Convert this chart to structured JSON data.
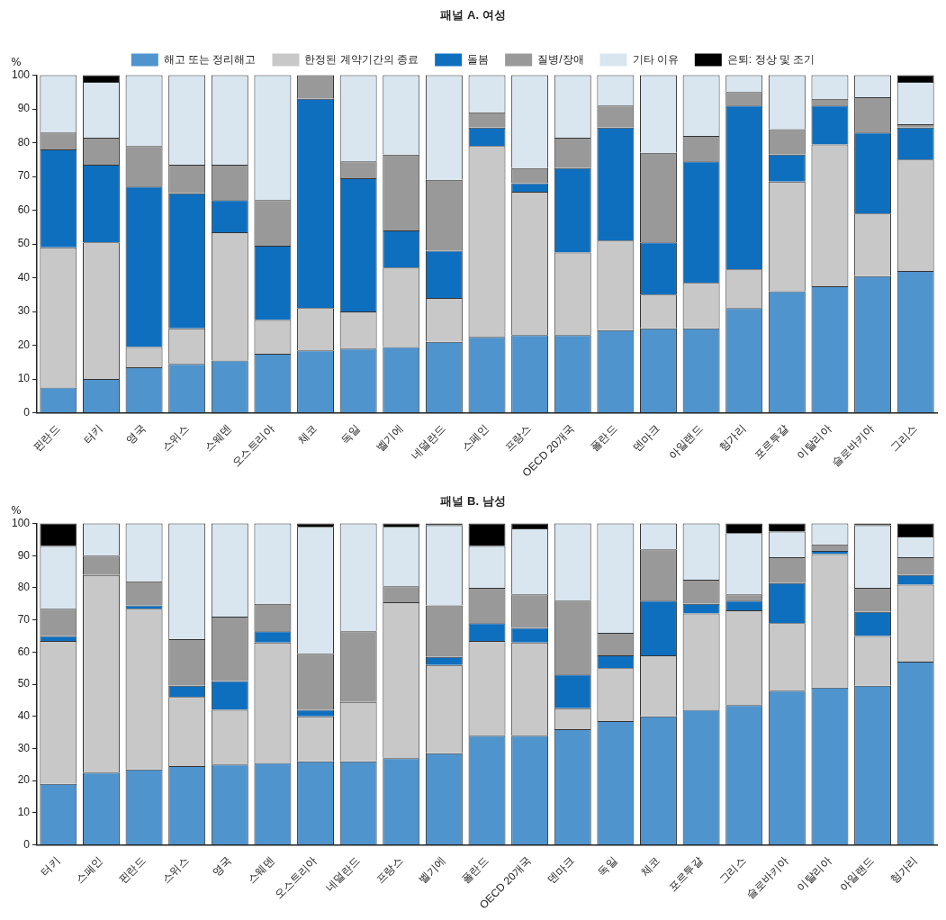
{
  "chart_data": [
    {
      "type": "bar",
      "title": "패널 A. 여성",
      "ylabel": "%",
      "stacked": true,
      "legend": "top",
      "grid": false,
      "ylim": [
        0,
        100
      ],
      "yticks": [
        0,
        10,
        20,
        30,
        40,
        50,
        60,
        70,
        80,
        90,
        100
      ],
      "categories": [
        "핀란드",
        "터키",
        "영국",
        "스위스",
        "스웨덴",
        "오스트리아",
        "체코",
        "독일",
        "벨기에",
        "네덜란드",
        "스페인",
        "프랑스",
        "OECD 20개국",
        "폴란드",
        "덴마크",
        "아일랜드",
        "헝가리",
        "포르투갈",
        "이탈리아",
        "슬로바키아",
        "그리스"
      ],
      "series": [
        {
          "name": "해고 또는 정리해고",
          "color": "#4f94cd",
          "values": [
            7.5,
            10,
            13.5,
            14.5,
            15.5,
            17.5,
            18.5,
            19,
            19.5,
            21,
            22.5,
            23,
            23,
            24.5,
            25,
            25,
            31,
            36,
            37.5,
            40.5,
            42
          ]
        },
        {
          "name": "한정된 계약기간의 종료",
          "color": "#c8c8c8",
          "values": [
            41.5,
            40.5,
            6,
            10.5,
            38,
            10,
            12.5,
            11,
            23.5,
            13,
            56.5,
            42.5,
            24.5,
            26.5,
            10,
            13.5,
            11.5,
            32.5,
            42,
            18.5,
            33
          ]
        },
        {
          "name": "돌봄",
          "color": "#0f6fbf",
          "values": [
            29,
            23,
            47.5,
            40,
            9.5,
            22,
            62,
            39.5,
            11,
            14,
            5.5,
            2.5,
            25,
            33.5,
            15.5,
            36,
            48.5,
            8,
            11.5,
            24,
            9.5
          ]
        },
        {
          "name": "질병/장애",
          "color": "#999999",
          "values": [
            5,
            8,
            12,
            8.5,
            10.5,
            13.5,
            7,
            5,
            22.5,
            21,
            4.5,
            4.5,
            9,
            6.5,
            26.5,
            7.5,
            4,
            7.5,
            2,
            10.5,
            1
          ]
        },
        {
          "name": "기타 이유",
          "color": "#d9e6f0",
          "values": [
            17,
            16.5,
            21,
            26.5,
            26.5,
            37,
            0,
            25.5,
            23.5,
            31,
            11,
            27.5,
            18.5,
            9,
            23,
            18,
            5,
            16,
            7,
            6.5,
            12.5
          ]
        },
        {
          "name": "은퇴: 정상 및 조기",
          "color": "#000000",
          "values": [
            0,
            2,
            0,
            0,
            0,
            0,
            0,
            0,
            0,
            0,
            0,
            0,
            0,
            0,
            0,
            0,
            0,
            0,
            0,
            0,
            2
          ]
        }
      ]
    },
    {
      "type": "bar",
      "title": "패널 B. 남성",
      "ylabel": "%",
      "stacked": true,
      "grid": false,
      "ylim": [
        0,
        100
      ],
      "yticks": [
        0,
        10,
        20,
        30,
        40,
        50,
        60,
        70,
        80,
        90,
        100
      ],
      "categories": [
        "터키",
        "스페인",
        "핀란드",
        "스위스",
        "영국",
        "스웨덴",
        "오스트리아",
        "네덜란드",
        "프랑스",
        "벨기에",
        "폴란드",
        "OECD 20개국",
        "덴마크",
        "독일",
        "체코",
        "포르투갈",
        "그리스",
        "슬로바키아",
        "이탈리아",
        "아일랜드",
        "헝가리"
      ],
      "series": [
        {
          "color": "#4f94cd",
          "values": [
            19,
            22.5,
            23.5,
            24.5,
            25,
            25.5,
            26,
            26,
            27,
            28.5,
            34,
            34,
            36,
            38.5,
            40,
            42,
            43.5,
            48,
            49,
            49.5,
            57
          ]
        },
        {
          "color": "#c8c8c8",
          "values": [
            44.5,
            61.5,
            50,
            21.5,
            17,
            37.5,
            14,
            18.5,
            48.5,
            27.5,
            29.5,
            29,
            6.5,
            16.5,
            19,
            30,
            29.5,
            21,
            41.5,
            15.5,
            24
          ]
        },
        {
          "color": "#0f6fbf",
          "values": [
            1.5,
            null,
            1,
            3.5,
            9,
            3.5,
            2,
            null,
            0,
            2.5,
            5.5,
            4.5,
            10.5,
            4,
            17,
            3,
            3,
            12.5,
            1,
            7.5,
            3
          ]
        },
        {
          "color": "#999999",
          "values": [
            8.5,
            6,
            7.5,
            14.5,
            20,
            8.5,
            17.5,
            22,
            5,
            16,
            11,
            10.5,
            23,
            7,
            16,
            7.5,
            2,
            8,
            2,
            7.5,
            5.5
          ]
        },
        {
          "color": "#d9e6f0",
          "values": [
            19.5,
            10,
            18,
            36,
            29,
            25,
            39.5,
            33.5,
            18.5,
            25,
            13,
            20.5,
            24,
            34,
            8,
            17.5,
            19,
            8,
            6.5,
            19.5,
            6.5
          ]
        },
        {
          "color": "#000000",
          "values": [
            7,
            0,
            0,
            0,
            0,
            0,
            1,
            0,
            1,
            0.5,
            7,
            1.5,
            0,
            0,
            0,
            0,
            3,
            2.5,
            0,
            0.5,
            4
          ]
        }
      ]
    }
  ]
}
